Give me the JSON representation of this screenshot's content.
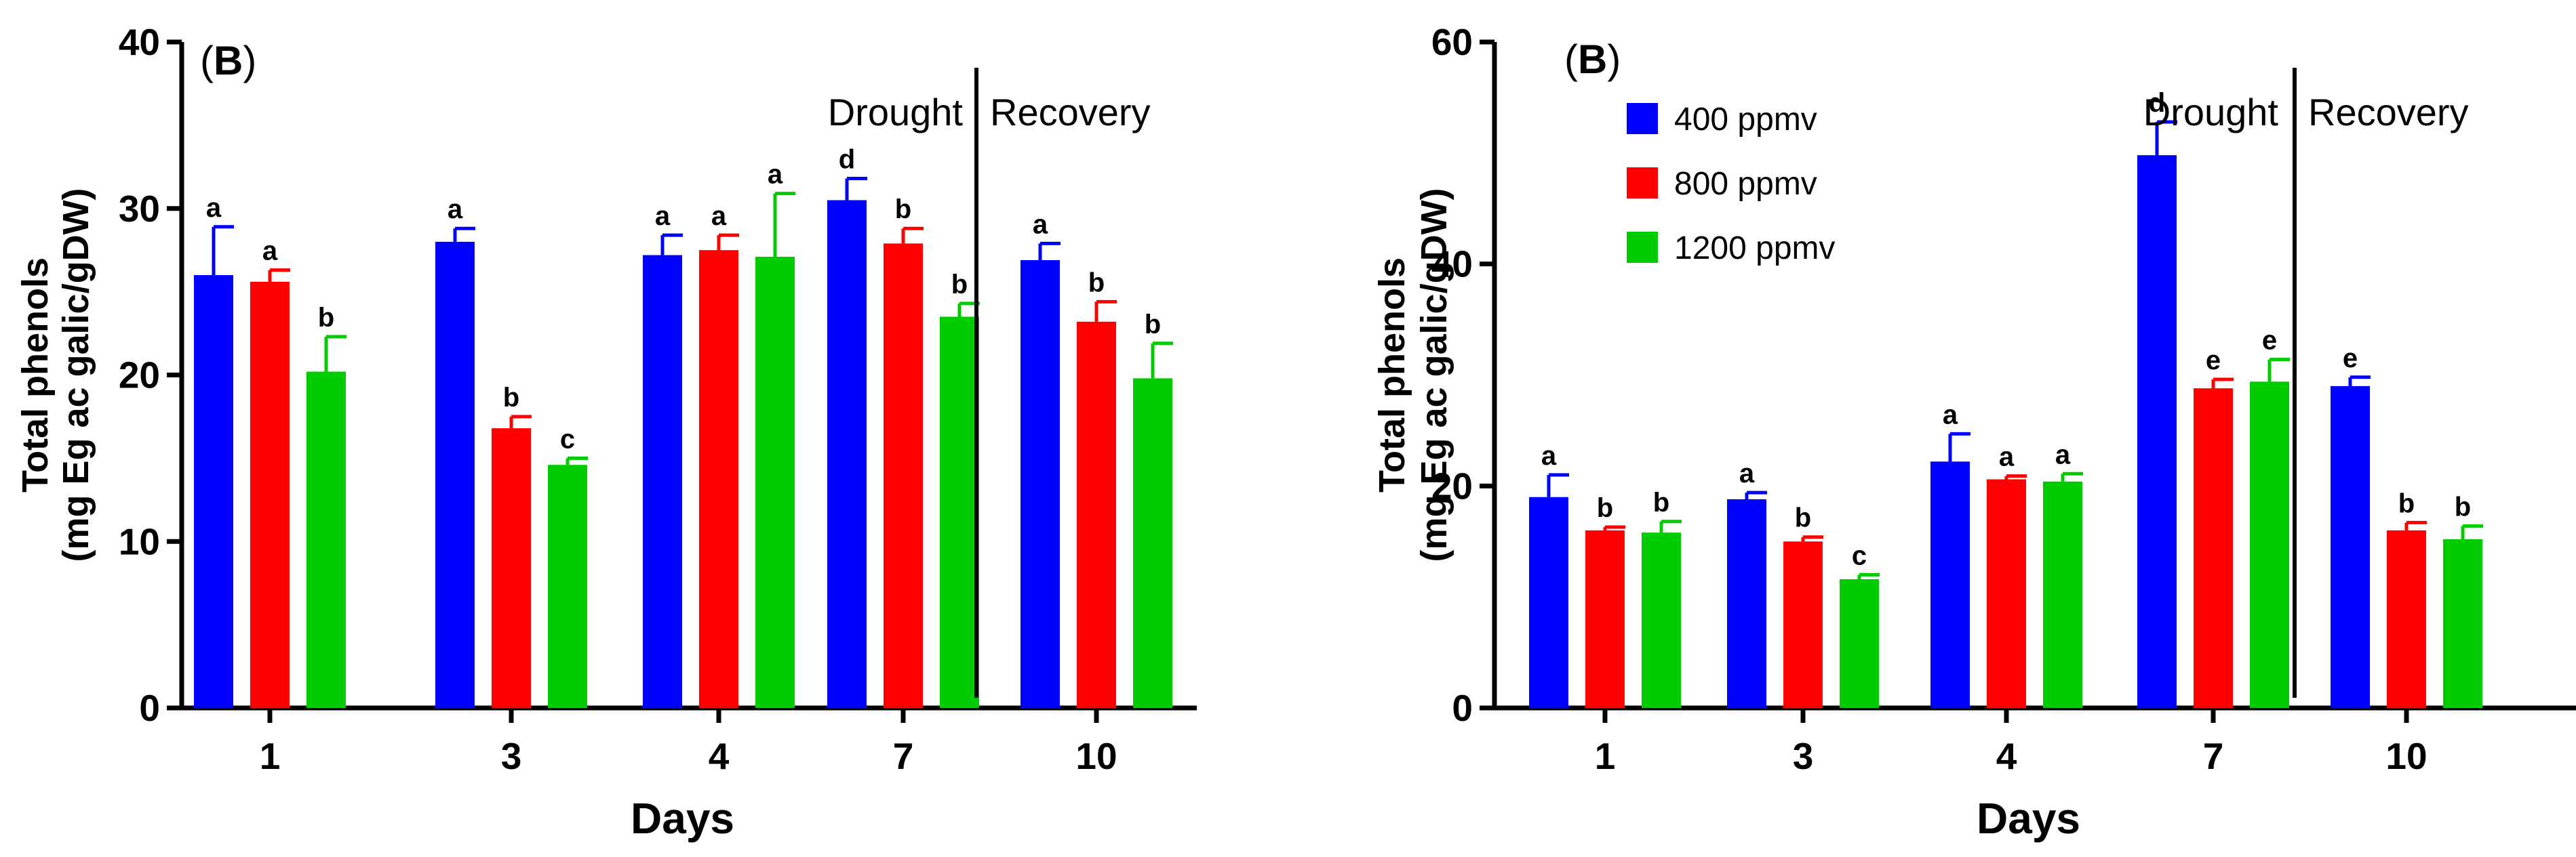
{
  "chart_data": [
    {
      "type": "bar",
      "panel_label": "B",
      "panel_label_open": "(",
      "panel_label_close": ")",
      "categories": [
        "1",
        "3",
        "4",
        "7",
        "10"
      ],
      "xlabel": "Days",
      "ylabel_line1": "Total phenols",
      "ylabel_line2": "(mg Eg ac galic/gDW)",
      "ylim": [
        0,
        40
      ],
      "yticks": [
        "0",
        "10",
        "20",
        "30",
        "40"
      ],
      "phases": [
        "Drought",
        "Recovery"
      ],
      "series": [
        {
          "name": "400 ppmv",
          "color": "#0000ff",
          "values": [
            26.0,
            28.0,
            27.2,
            30.5,
            26.9
          ],
          "errors": [
            2.9,
            0.8,
            1.2,
            1.3,
            1.0
          ],
          "letters": [
            "a",
            "a",
            "a",
            "d",
            "a"
          ]
        },
        {
          "name": "800 ppmv",
          "color": "#ff0000",
          "values": [
            25.6,
            16.8,
            27.5,
            27.9,
            23.2
          ],
          "errors": [
            0.7,
            0.7,
            0.9,
            0.9,
            1.2
          ],
          "letters": [
            "a",
            "b",
            "a",
            "b",
            "b"
          ]
        },
        {
          "name": "1200 ppmv",
          "color": "#00cc00",
          "values": [
            20.2,
            14.6,
            27.1,
            23.5,
            19.8
          ],
          "errors": [
            2.1,
            0.4,
            3.8,
            0.8,
            2.1
          ],
          "letters": [
            "b",
            "c",
            "a",
            "b",
            "b"
          ]
        }
      ]
    },
    {
      "type": "bar",
      "panel_label": "B",
      "panel_label_open": "(",
      "panel_label_close": ")",
      "categories": [
        "1",
        "3",
        "4",
        "7",
        "10"
      ],
      "xlabel": "Days",
      "ylabel_line1": "Total phenols",
      "ylabel_line2": "(mg Eg ac galic/gDW)",
      "ylim": [
        0,
        60
      ],
      "yticks": [
        "0",
        "20",
        "40",
        "60"
      ],
      "phases": [
        "Drought",
        "Recovery"
      ],
      "legend": [
        "400 ppmv",
        "800 ppmv",
        "1200 ppmv"
      ],
      "series": [
        {
          "name": "400 ppmv",
          "color": "#0000ff",
          "values": [
            19.0,
            18.8,
            22.2,
            49.8,
            29.0
          ],
          "errors": [
            2.0,
            0.6,
            2.5,
            3.0,
            0.8
          ],
          "letters": [
            "a",
            "a",
            "a",
            "d",
            "e"
          ]
        },
        {
          "name": "800 ppmv",
          "color": "#ff0000",
          "values": [
            16.0,
            15.0,
            20.6,
            28.8,
            16.0
          ],
          "errors": [
            0.3,
            0.4,
            0.3,
            0.8,
            0.7
          ],
          "letters": [
            "b",
            "b",
            "a",
            "e",
            "b"
          ]
        },
        {
          "name": "1200 ppmv",
          "color": "#00cc00",
          "values": [
            15.8,
            11.6,
            20.4,
            29.4,
            15.2
          ],
          "errors": [
            1.0,
            0.4,
            0.7,
            2.0,
            1.2
          ],
          "letters": [
            "b",
            "c",
            "a",
            "e",
            "b"
          ]
        }
      ]
    }
  ]
}
